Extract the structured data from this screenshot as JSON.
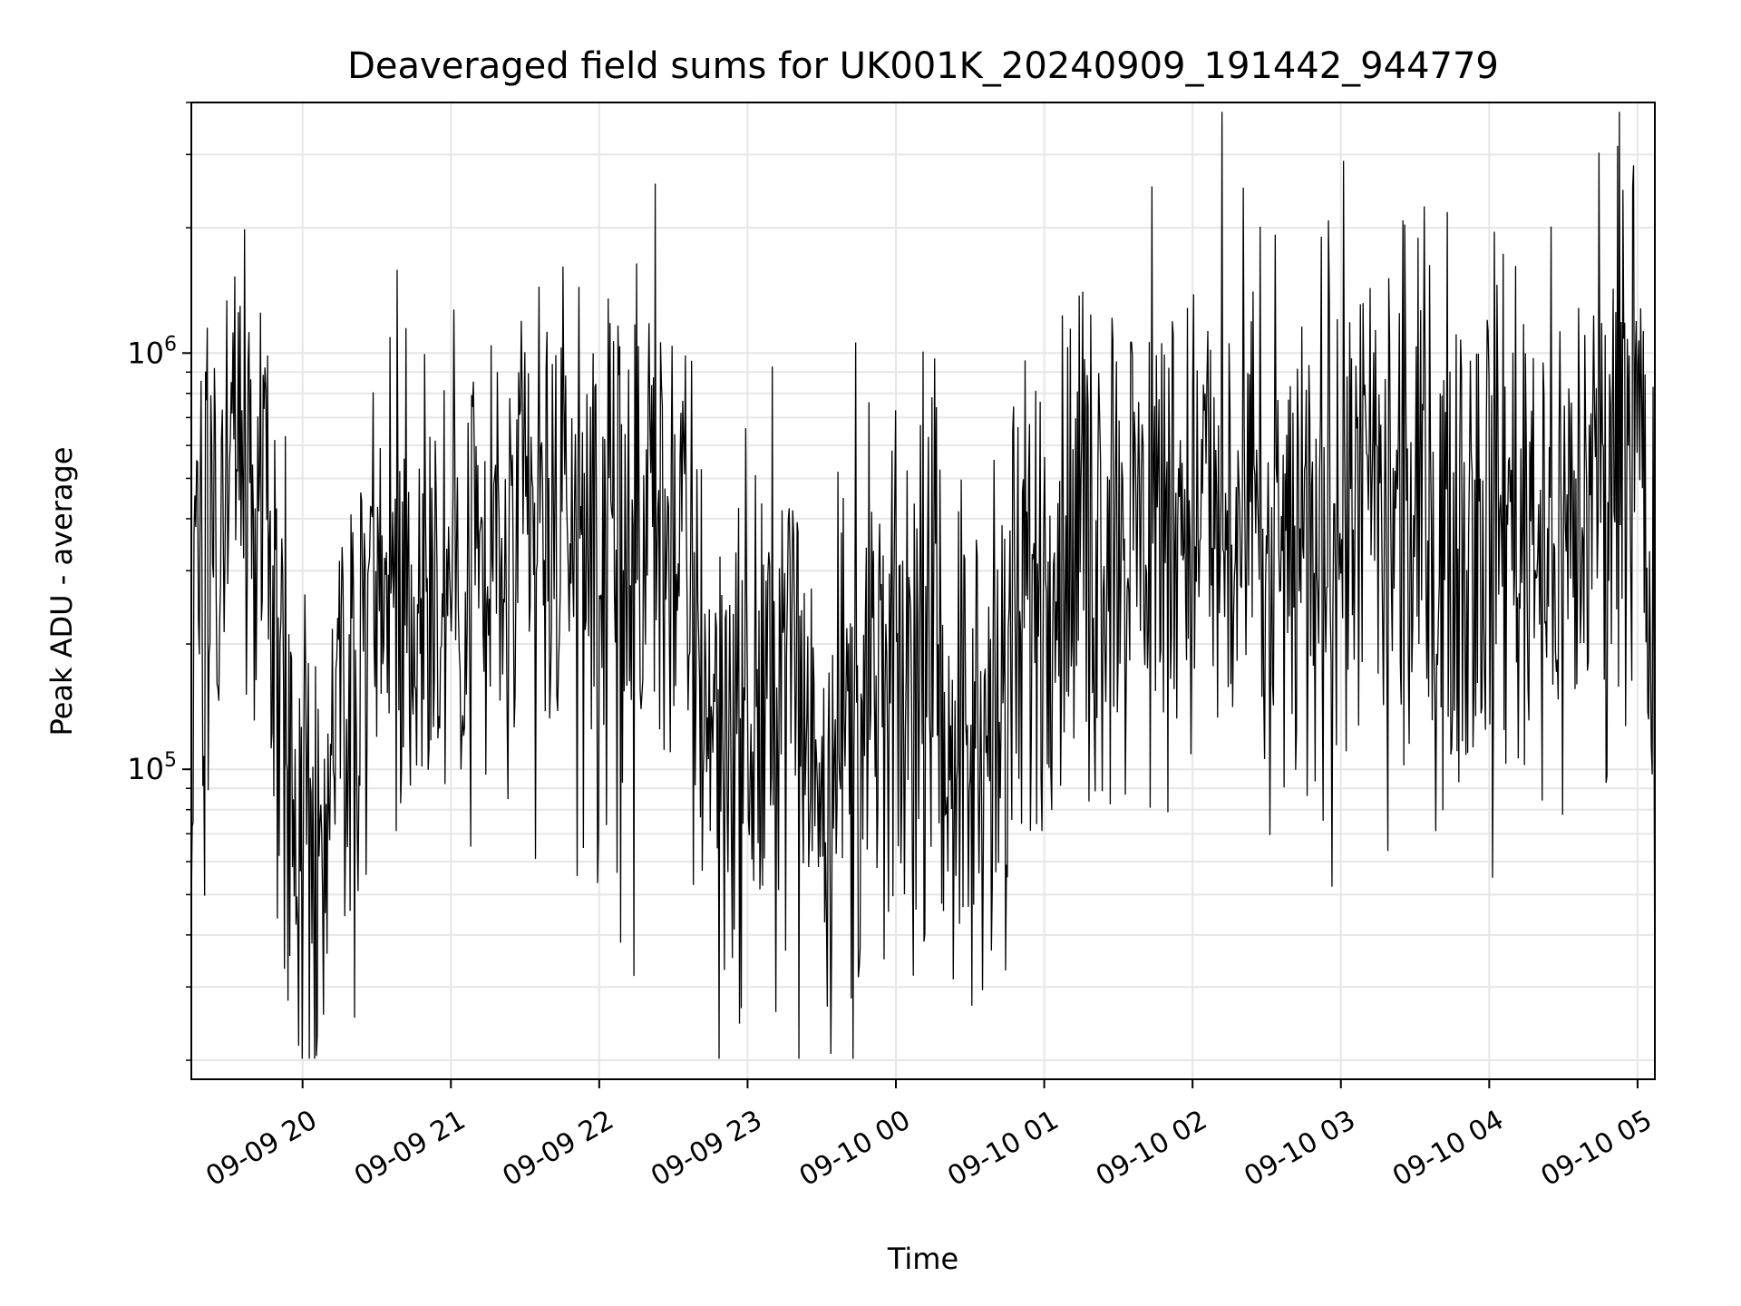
{
  "chart_data": {
    "type": "line",
    "title": "Deaveraged field sums for UK001K_20240909_191442_944779",
    "xlabel": "Time",
    "ylabel": "Peak ADU - average",
    "x_scale": "time",
    "y_scale": "log",
    "xlim": [
      "2024-09-09 19:15",
      "2024-09-10 05:07"
    ],
    "ylim": [
      18000,
      4000000
    ],
    "grid": true,
    "line_color": "#000000",
    "x_ticks": [
      {
        "value": "2024-09-09 20:00",
        "label": "09-09 20"
      },
      {
        "value": "2024-09-09 21:00",
        "label": "09-09 21"
      },
      {
        "value": "2024-09-09 22:00",
        "label": "09-09 22"
      },
      {
        "value": "2024-09-09 23:00",
        "label": "09-09 23"
      },
      {
        "value": "2024-09-10 00:00",
        "label": "09-10 00"
      },
      {
        "value": "2024-09-10 01:00",
        "label": "09-10 01"
      },
      {
        "value": "2024-09-10 02:00",
        "label": "09-10 02"
      },
      {
        "value": "2024-09-10 03:00",
        "label": "09-10 03"
      },
      {
        "value": "2024-09-10 04:00",
        "label": "09-10 04"
      },
      {
        "value": "2024-09-10 05:00",
        "label": "09-10 05"
      }
    ],
    "y_major_ticks": [
      {
        "value": 100000,
        "base": "10",
        "exp": "5"
      },
      {
        "value": 1000000,
        "base": "10",
        "exp": "6"
      }
    ],
    "series": [
      {
        "x": [
          "2024-09-09 19:15",
          "2024-09-09 19:25",
          "2024-09-09 19:35",
          "2024-09-09 19:45",
          "2024-09-09 19:55",
          "2024-09-09 20:00",
          "2024-09-09 20:05",
          "2024-09-09 20:15",
          "2024-09-09 20:30",
          "2024-09-09 20:45",
          "2024-09-09 21:00",
          "2024-09-09 21:15",
          "2024-09-09 21:30",
          "2024-09-09 21:45",
          "2024-09-09 22:00",
          "2024-09-09 22:15",
          "2024-09-09 22:30",
          "2024-09-09 22:45",
          "2024-09-09 23:00",
          "2024-09-09 23:15",
          "2024-09-09 23:30",
          "2024-09-09 23:45",
          "2024-09-10 00:00",
          "2024-09-10 00:15",
          "2024-09-10 00:30",
          "2024-09-10 00:45",
          "2024-09-10 01:00",
          "2024-09-10 01:15",
          "2024-09-10 01:30",
          "2024-09-10 01:45",
          "2024-09-10 02:00",
          "2024-09-10 02:15",
          "2024-09-10 02:30",
          "2024-09-10 02:45",
          "2024-09-10 03:00",
          "2024-09-10 03:15",
          "2024-09-10 03:30",
          "2024-09-10 03:45",
          "2024-09-10 04:00",
          "2024-09-10 04:15",
          "2024-09-10 04:30",
          "2024-09-10 04:45",
          "2024-09-10 05:00",
          "2024-09-10 05:07"
        ],
        "y": [
          220000,
          500000,
          600000,
          350000,
          90000,
          70000,
          55000,
          110000,
          280000,
          250000,
          300000,
          280000,
          350000,
          400000,
          300000,
          320000,
          400000,
          150000,
          120000,
          200000,
          110000,
          130000,
          150000,
          200000,
          100000,
          150000,
          300000,
          350000,
          380000,
          400000,
          420000,
          350000,
          300000,
          320000,
          500000,
          400000,
          350000,
          380000,
          420000,
          450000,
          350000,
          500000,
          800000,
          150000
        ]
      }
    ]
  }
}
